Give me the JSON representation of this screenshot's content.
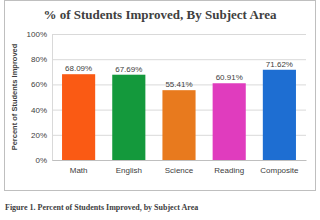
{
  "chart_data": {
    "type": "bar",
    "title": "% of Students Improved, By Subject Area",
    "y_label": "Percent of Students Improved",
    "caption": "Figure 1. Percent of Students Improved, by Subject Area",
    "categories": [
      "Math",
      "English",
      "Science",
      "Reading",
      "Composite"
    ],
    "values": [
      68.09,
      67.69,
      55.41,
      60.91,
      71.62
    ],
    "value_labels": [
      "68.09%",
      "67.69%",
      "55.41%",
      "60.91%",
      "71.62%"
    ],
    "colors": [
      "#fa5a14",
      "#14993c",
      "#e87a1e",
      "#e03cbe",
      "#1e6ed2"
    ],
    "ylim": [
      0,
      100
    ],
    "yticks": [
      {
        "value": 0,
        "label": "0%"
      },
      {
        "value": 20,
        "label": "20%"
      },
      {
        "value": 40,
        "label": "40%"
      },
      {
        "value": 60,
        "label": "60%"
      },
      {
        "value": 80,
        "label": "80%"
      },
      {
        "value": 100,
        "label": "100%"
      }
    ],
    "grid": true,
    "data_labels": true
  }
}
